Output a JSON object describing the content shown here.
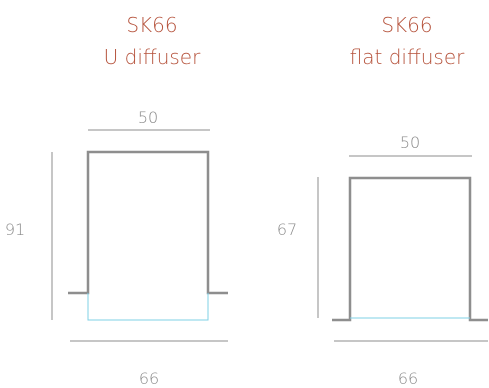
{
  "colors": {
    "title": "#b5513a",
    "dimension_text": "#8a8a8a",
    "dimension_line": "#8c8c8c",
    "profile": "#8e8e8e",
    "diffuser": "#7fd0e6"
  },
  "profiles": [
    {
      "model": "SK66",
      "variant": "U diffuser",
      "width_top": "50",
      "height": "91",
      "width_bottom": "66"
    },
    {
      "model": "SK66",
      "variant": "flat diffuser",
      "width_top": "50",
      "height": "67",
      "width_bottom": "66"
    }
  ]
}
